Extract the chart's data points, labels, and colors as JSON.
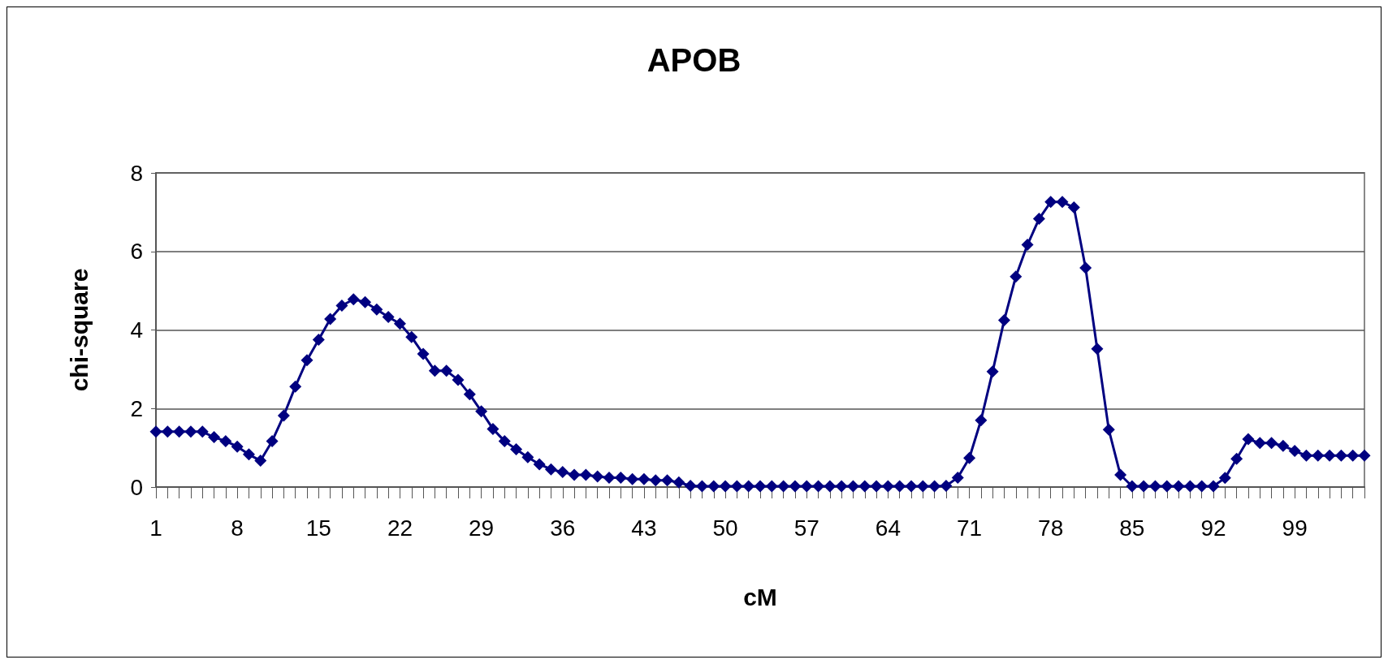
{
  "chart_data": {
    "type": "line",
    "title": "APOB",
    "xlabel": "cM",
    "ylabel": "chi-square",
    "categories": [
      "1",
      null,
      null,
      null,
      null,
      null,
      null,
      "8",
      null,
      null,
      null,
      null,
      null,
      null,
      "15",
      null,
      null,
      null,
      null,
      null,
      null,
      "22",
      null,
      null,
      null,
      null,
      null,
      null,
      "29",
      null,
      null,
      null,
      null,
      null,
      null,
      "36",
      null,
      null,
      null,
      null,
      null,
      null,
      "43",
      null,
      null,
      null,
      null,
      null,
      null,
      "50",
      null,
      null,
      null,
      null,
      null,
      null,
      "57",
      null,
      null,
      null,
      null,
      null,
      null,
      "64",
      null,
      null,
      null,
      null,
      null,
      null,
      "71",
      null,
      null,
      null,
      null,
      null,
      null,
      "78",
      null,
      null,
      null,
      null,
      null,
      null,
      "85",
      null,
      null,
      null,
      null,
      null,
      null,
      "92",
      null,
      null,
      null,
      null,
      null,
      null,
      "99",
      null,
      null,
      null,
      null,
      null,
      null
    ],
    "series": [
      {
        "color": "#000080",
        "values": [
          1.41,
          1.41,
          1.41,
          1.41,
          1.41,
          1.27,
          1.17,
          1.03,
          0.83,
          0.67,
          1.17,
          1.82,
          2.56,
          3.23,
          3.75,
          4.28,
          4.62,
          4.78,
          4.71,
          4.52,
          4.33,
          4.16,
          3.82,
          3.39,
          2.96,
          2.96,
          2.73,
          2.36,
          1.93,
          1.48,
          1.17,
          0.96,
          0.76,
          0.58,
          0.45,
          0.38,
          0.31,
          0.31,
          0.27,
          0.24,
          0.24,
          0.2,
          0.2,
          0.17,
          0.17,
          0.12,
          0.03,
          0.02,
          0.02,
          0.02,
          0.02,
          0.02,
          0.02,
          0.02,
          0.02,
          0.02,
          0.02,
          0.02,
          0.02,
          0.02,
          0.02,
          0.02,
          0.02,
          0.02,
          0.02,
          0.02,
          0.02,
          0.02,
          0.03,
          0.24,
          0.74,
          1.7,
          2.94,
          4.25,
          5.36,
          6.17,
          6.83,
          7.26,
          7.26,
          7.12,
          5.58,
          3.52,
          1.46,
          0.31,
          0.02,
          0.02,
          0.02,
          0.02,
          0.02,
          0.02,
          0.02,
          0.02,
          0.23,
          0.72,
          1.22,
          1.12,
          1.12,
          1.05,
          0.92,
          0.8,
          0.8,
          0.8,
          0.8,
          0.8,
          0.8
        ]
      }
    ],
    "ylim": [
      0,
      8
    ],
    "yticks": [
      0,
      2,
      4,
      6,
      8
    ],
    "grid": "y",
    "marker": "diamond",
    "line_style": "solid"
  }
}
